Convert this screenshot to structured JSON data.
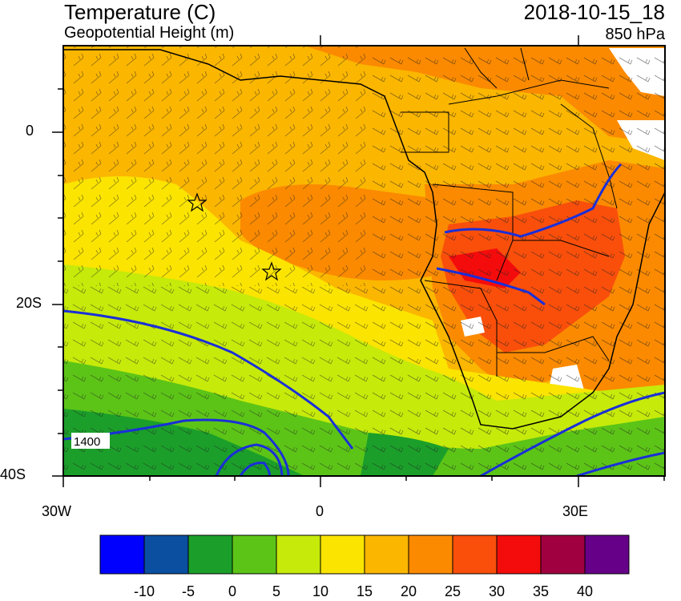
{
  "header": {
    "left_title": "Temperature (C)",
    "left_subtitle": "Geopotential Height (m)",
    "right_title": "2018-10-15_18",
    "right_subtitle": "850 hPa"
  },
  "axes": {
    "x_ticks": [
      "30W",
      "0",
      "30E"
    ],
    "y_ticks": [
      "0",
      "20S",
      "40S"
    ]
  },
  "contour_label": "1400",
  "colorbar": {
    "labels": [
      "-10",
      "-5",
      "0",
      "5",
      "10",
      "15",
      "20",
      "25",
      "30",
      "35",
      "40"
    ],
    "colors": [
      "#0000ff",
      "#0a4fa0",
      "#1b9f2a",
      "#5cc417",
      "#c6ea0a",
      "#fbe400",
      "#fbb600",
      "#fb8a00",
      "#f94f0b",
      "#f40c0c",
      "#a0003f",
      "#660088"
    ]
  }
}
